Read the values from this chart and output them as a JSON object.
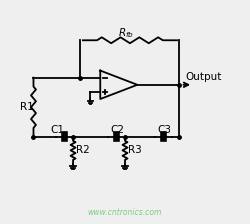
{
  "bg_color": "#efefef",
  "line_color": "black",
  "lw": 1.3,
  "watermark": "www.cntronics.com",
  "watermark_color": "#7dce7d",
  "label_fontsize": 7.5,
  "rfb_fontsize": 7.5,
  "output_fontsize": 7.5,
  "xlim": [
    0,
    10
  ],
  "ylim": [
    0,
    9
  ]
}
